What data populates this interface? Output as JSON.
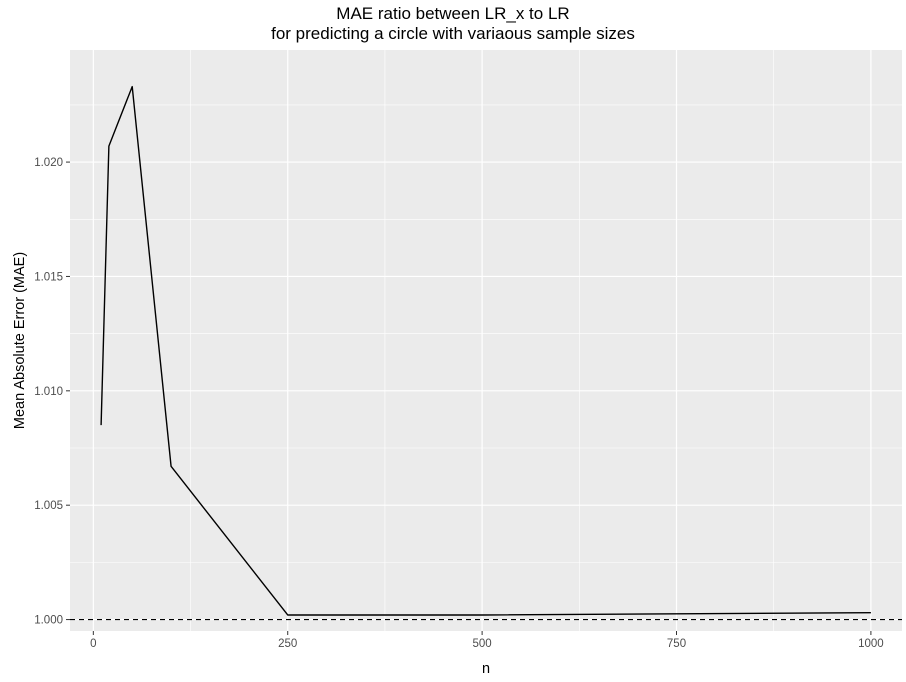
{
  "chart_data": {
    "type": "line",
    "title": "MAE ratio between LR_x to LR",
    "subtitle": "for predicting a circle with variaous sample sizes",
    "xlabel": "n",
    "ylabel": "Mean Absolute Error (MAE)",
    "xlim": [
      -30,
      1040
    ],
    "ylim": [
      0.9995,
      1.0249
    ],
    "x_ticks": [
      0,
      250,
      500,
      750,
      1000
    ],
    "x_tick_labels": [
      "0",
      "250",
      "500",
      "750",
      "1000"
    ],
    "y_ticks": [
      1.0,
      1.005,
      1.01,
      1.015,
      1.02
    ],
    "y_tick_labels": [
      "1.000",
      "1.005",
      "1.010",
      "1.015",
      "1.020"
    ],
    "series": [
      {
        "x": [
          10,
          20,
          50,
          100,
          250,
          500,
          1000
        ],
        "y": [
          1.0085,
          1.0207,
          1.0233,
          1.0067,
          1.0002,
          1.0002,
          1.0003
        ],
        "color": "#000000",
        "style": "solid"
      }
    ],
    "reference_lines": [
      {
        "y": 1.0,
        "style": "dashed",
        "color": "#000000"
      }
    ],
    "grid": true,
    "panel_background": "#ebebeb",
    "grid_color": "#ffffff"
  }
}
